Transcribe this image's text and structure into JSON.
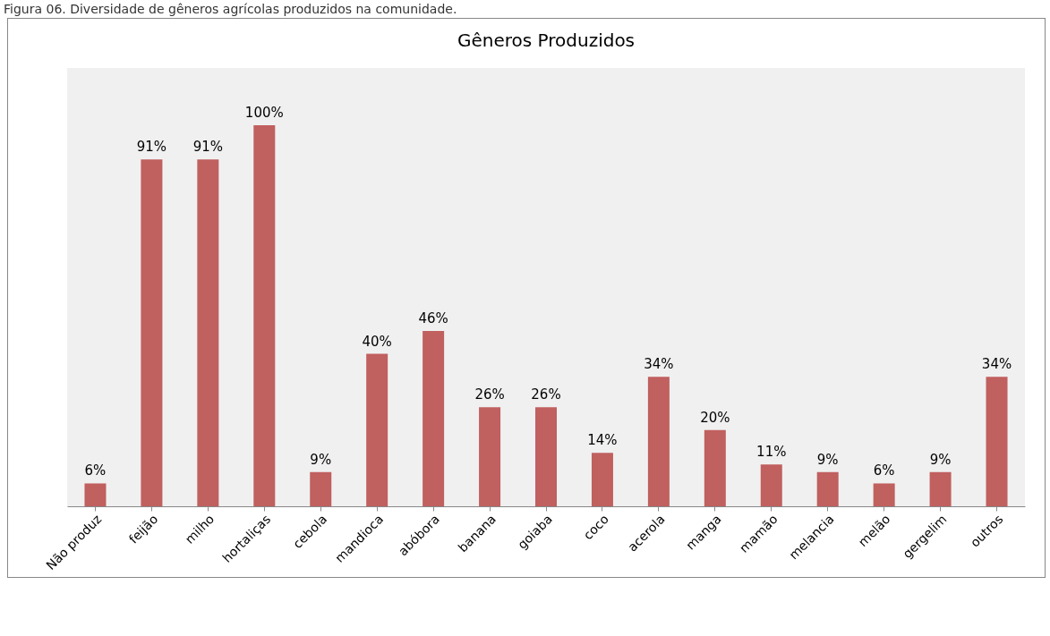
{
  "chart_data": {
    "type": "bar",
    "title": "Gêneros Produzidos",
    "annotations": [
      "Figura 06. Diversidade de gêneros agrícolas produzidos na comunidade."
    ],
    "categories": [
      "Não produz",
      "feijão",
      "milho",
      "hortaliças",
      "cebola",
      "mandioca",
      "abóbora",
      "banana",
      "goiaba",
      "coco",
      "acerola",
      "manga",
      "mamão",
      "melancia",
      "melão",
      "gergelim",
      "outros"
    ],
    "values": [
      6,
      91,
      91,
      100,
      9,
      40,
      46,
      26,
      26,
      14,
      34,
      20,
      11,
      9,
      6,
      9,
      34
    ],
    "value_labels": [
      "6%",
      "91%",
      "91%",
      "100%",
      "9%",
      "40%",
      "46%",
      "26%",
      "26%",
      "14%",
      "34%",
      "20%",
      "11%",
      "9%",
      "6%",
      "9%",
      "34%"
    ],
    "color": "#c0605f"
  }
}
